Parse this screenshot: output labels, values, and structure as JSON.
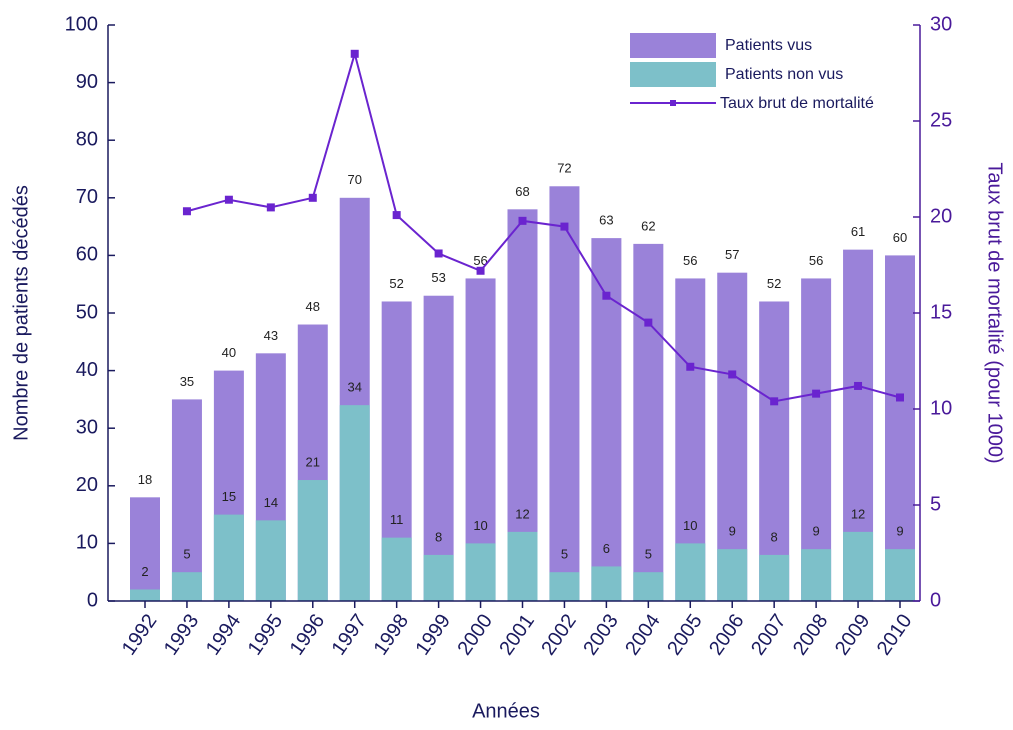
{
  "chart_data": {
    "type": "bar",
    "x_label": "Années",
    "y_label": "Nombre de patients décédés",
    "y2_label": "Taux brut de mortalité (pour 1000)",
    "categories": [
      "1992",
      "1993",
      "1994",
      "1995",
      "1996",
      "1997",
      "1998",
      "1999",
      "2000",
      "2001",
      "2002",
      "2003",
      "2004",
      "2005",
      "2006",
      "2007",
      "2008",
      "2009",
      "2010"
    ],
    "series": [
      {
        "name": "Patients vus",
        "type": "bar",
        "color": "#9a82d9",
        "values": [
          18,
          35,
          40,
          43,
          48,
          70,
          52,
          53,
          56,
          68,
          72,
          63,
          62,
          56,
          57,
          52,
          56,
          61,
          60
        ]
      },
      {
        "name": "Patients non vus",
        "type": "bar",
        "color": "#7dc0c9",
        "values": [
          2,
          5,
          15,
          14,
          21,
          34,
          11,
          8,
          10,
          12,
          5,
          6,
          5,
          10,
          9,
          8,
          9,
          12,
          9
        ]
      },
      {
        "name": "Taux brut de mortalité",
        "type": "line",
        "axis": "y2",
        "color": "#6a24cf",
        "values": [
          null,
          20.3,
          20.9,
          20.5,
          21.0,
          28.5,
          20.1,
          18.1,
          17.2,
          19.8,
          19.5,
          15.9,
          14.5,
          12.2,
          11.8,
          10.4,
          10.8,
          11.2,
          10.6
        ]
      }
    ],
    "ylim": [
      0,
      100
    ],
    "yticks": [
      0,
      10,
      20,
      30,
      40,
      50,
      60,
      70,
      80,
      90,
      100
    ],
    "y2lim": [
      0,
      30
    ],
    "y2ticks": [
      0,
      5,
      10,
      15,
      20,
      25,
      30
    ],
    "legend": "upper right"
  }
}
